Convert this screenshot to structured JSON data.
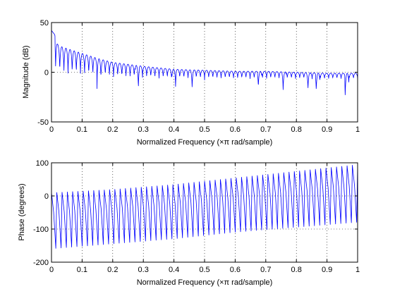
{
  "colors": {
    "line": "#0000ff",
    "axes": "#000000",
    "grid": "#000000",
    "background": "#ffffff"
  },
  "chart_data": [
    {
      "type": "line",
      "xlabel": "Normalized Frequency  (×π rad/sample)",
      "ylabel": "Magnitude (dB)",
      "xlim": [
        0,
        1
      ],
      "ylim": [
        -50,
        50
      ],
      "xticks": [
        0,
        0.1,
        0.2,
        0.3,
        0.4,
        0.5,
        0.6,
        0.7,
        0.8,
        0.9,
        1
      ],
      "xtick_labels": [
        "0",
        "0.1",
        "0.2",
        "0.3",
        "0.4",
        "0.5",
        "0.6",
        "0.7",
        "0.8",
        "0.9",
        "1"
      ],
      "yticks": [
        -50,
        0,
        50
      ],
      "ytick_labels": [
        "-50",
        "0",
        "50"
      ],
      "grid": "dotted",
      "series": [
        {
          "x": [
            0,
            0.01,
            0.02,
            0.03,
            0.05,
            0.08,
            0.1,
            0.15,
            0.2,
            0.25,
            0.3,
            0.4,
            0.5,
            0.6,
            0.7,
            0.8,
            0.9,
            1
          ],
          "upper_envelope": [
            42,
            38,
            28,
            26,
            24,
            21,
            19,
            14,
            10,
            8,
            6,
            3,
            2,
            1,
            1,
            0,
            -1,
            -1
          ],
          "trough_level": -8,
          "deep_troughs": [
            [
              0.155,
              -22
            ],
            [
              0.28,
              -25
            ],
            [
              0.4,
              -20
            ],
            [
              0.46,
              -22
            ],
            [
              0.68,
              -21
            ],
            [
              0.76,
              -24
            ],
            [
              0.84,
              -23
            ],
            [
              0.87,
              -25
            ],
            [
              0.965,
              -32
            ]
          ],
          "ripple_count": 74
        }
      ]
    },
    {
      "type": "line",
      "xlabel": "Normalized Frequency  (×π rad/sample)",
      "ylabel": "Phase (degrees)",
      "xlim": [
        0,
        1
      ],
      "ylim": [
        -200,
        100
      ],
      "xticks": [
        0,
        0.1,
        0.2,
        0.3,
        0.4,
        0.5,
        0.6,
        0.7,
        0.8,
        0.9,
        1
      ],
      "xtick_labels": [
        "0",
        "0.1",
        "0.2",
        "0.3",
        "0.4",
        "0.5",
        "0.6",
        "0.7",
        "0.8",
        "0.9",
        "1"
      ],
      "yticks": [
        -200,
        -100,
        0,
        100
      ],
      "ytick_labels": [
        "-200",
        "-100",
        "0",
        "100"
      ],
      "grid": "dotted",
      "series": [
        {
          "x": [
            0,
            0.2,
            0.4,
            0.6,
            0.8,
            1
          ],
          "cycle_max": [
            10,
            20,
            35,
            55,
            75,
            95
          ],
          "cycle_min": [
            -160,
            -145,
            -130,
            -110,
            -95,
            -80
          ],
          "cycle_count": 58
        }
      ]
    }
  ]
}
